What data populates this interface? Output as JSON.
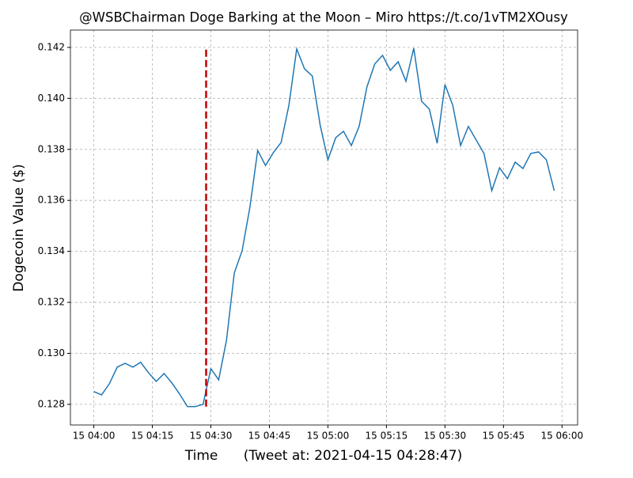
{
  "chart_data": {
    "type": "line",
    "title": "@WSBChairman Doge Barking at the Moon – Miro https://t.co/1vTM2XOusy",
    "xlabel": "Time      (Tweet at: 2021-04-15 04:28:47)",
    "ylabel": "Dogecoin Value ($)",
    "x": [
      "15 04:00",
      "15 04:02",
      "15 04:04",
      "15 04:06",
      "15 04:08",
      "15 04:10",
      "15 04:12",
      "15 04:14",
      "15 04:16",
      "15 04:18",
      "15 04:20",
      "15 04:22",
      "15 04:24",
      "15 04:26",
      "15 04:28",
      "15 04:30",
      "15 04:32",
      "15 04:34",
      "15 04:36",
      "15 04:38",
      "15 04:40",
      "15 04:42",
      "15 04:44",
      "15 04:46",
      "15 04:48",
      "15 04:50",
      "15 04:52",
      "15 04:54",
      "15 04:56",
      "15 04:58",
      "15 05:00",
      "15 05:02",
      "15 05:04",
      "15 05:06",
      "15 05:08",
      "15 05:10",
      "15 05:12",
      "15 05:14",
      "15 05:16",
      "15 05:18",
      "15 05:20",
      "15 05:22",
      "15 05:24",
      "15 05:26",
      "15 05:28",
      "15 05:30",
      "15 05:32",
      "15 05:34",
      "15 05:36",
      "15 05:38",
      "15 05:40",
      "15 05:42",
      "15 05:44",
      "15 05:46",
      "15 05:48",
      "15 05:50",
      "15 05:52",
      "15 05:54",
      "15 05:56",
      "15 05:58"
    ],
    "values": [
      0.1285,
      0.12837,
      0.12881,
      0.12946,
      0.12961,
      0.12946,
      0.12965,
      0.12924,
      0.1289,
      0.12921,
      0.12884,
      0.1284,
      0.12791,
      0.12791,
      0.128,
      0.1294,
      0.12896,
      0.13051,
      0.13315,
      0.13402,
      0.13573,
      0.13796,
      0.13737,
      0.13787,
      0.13827,
      0.13973,
      0.14194,
      0.14116,
      0.14088,
      0.13896,
      0.13759,
      0.13846,
      0.13871,
      0.13815,
      0.1389,
      0.14045,
      0.14135,
      0.14169,
      0.1411,
      0.14144,
      0.14067,
      0.14197,
      0.13989,
      0.13958,
      0.13824,
      0.14054,
      0.13973,
      0.13815,
      0.1389,
      0.13837,
      0.13784,
      0.13638,
      0.13728,
      0.13685,
      0.1375,
      0.13725,
      0.13784,
      0.1379,
      0.13759,
      0.13638
    ],
    "color": "#1f77b4",
    "vline": {
      "x": "15 04:28:47",
      "ymin": 0.12791,
      "ymax": 0.14197,
      "color": "#c00000"
    },
    "xlim": [
      "15 03:54",
      "15 06:04"
    ],
    "xticks": [
      "15 04:00",
      "15 04:15",
      "15 04:30",
      "15 04:45",
      "15 05:00",
      "15 05:15",
      "15 05:30",
      "15 05:45",
      "15 06:00"
    ],
    "ylim": [
      0.12719,
      0.14268
    ],
    "yticks": [
      0.128,
      {
        "value": 0.13,
        "label": "0.130"
      },
      0.132,
      0.134,
      0.136,
      0.138,
      {
        "value": 0.14,
        "label": "0.140"
      },
      0.142
    ],
    "grid": true
  }
}
